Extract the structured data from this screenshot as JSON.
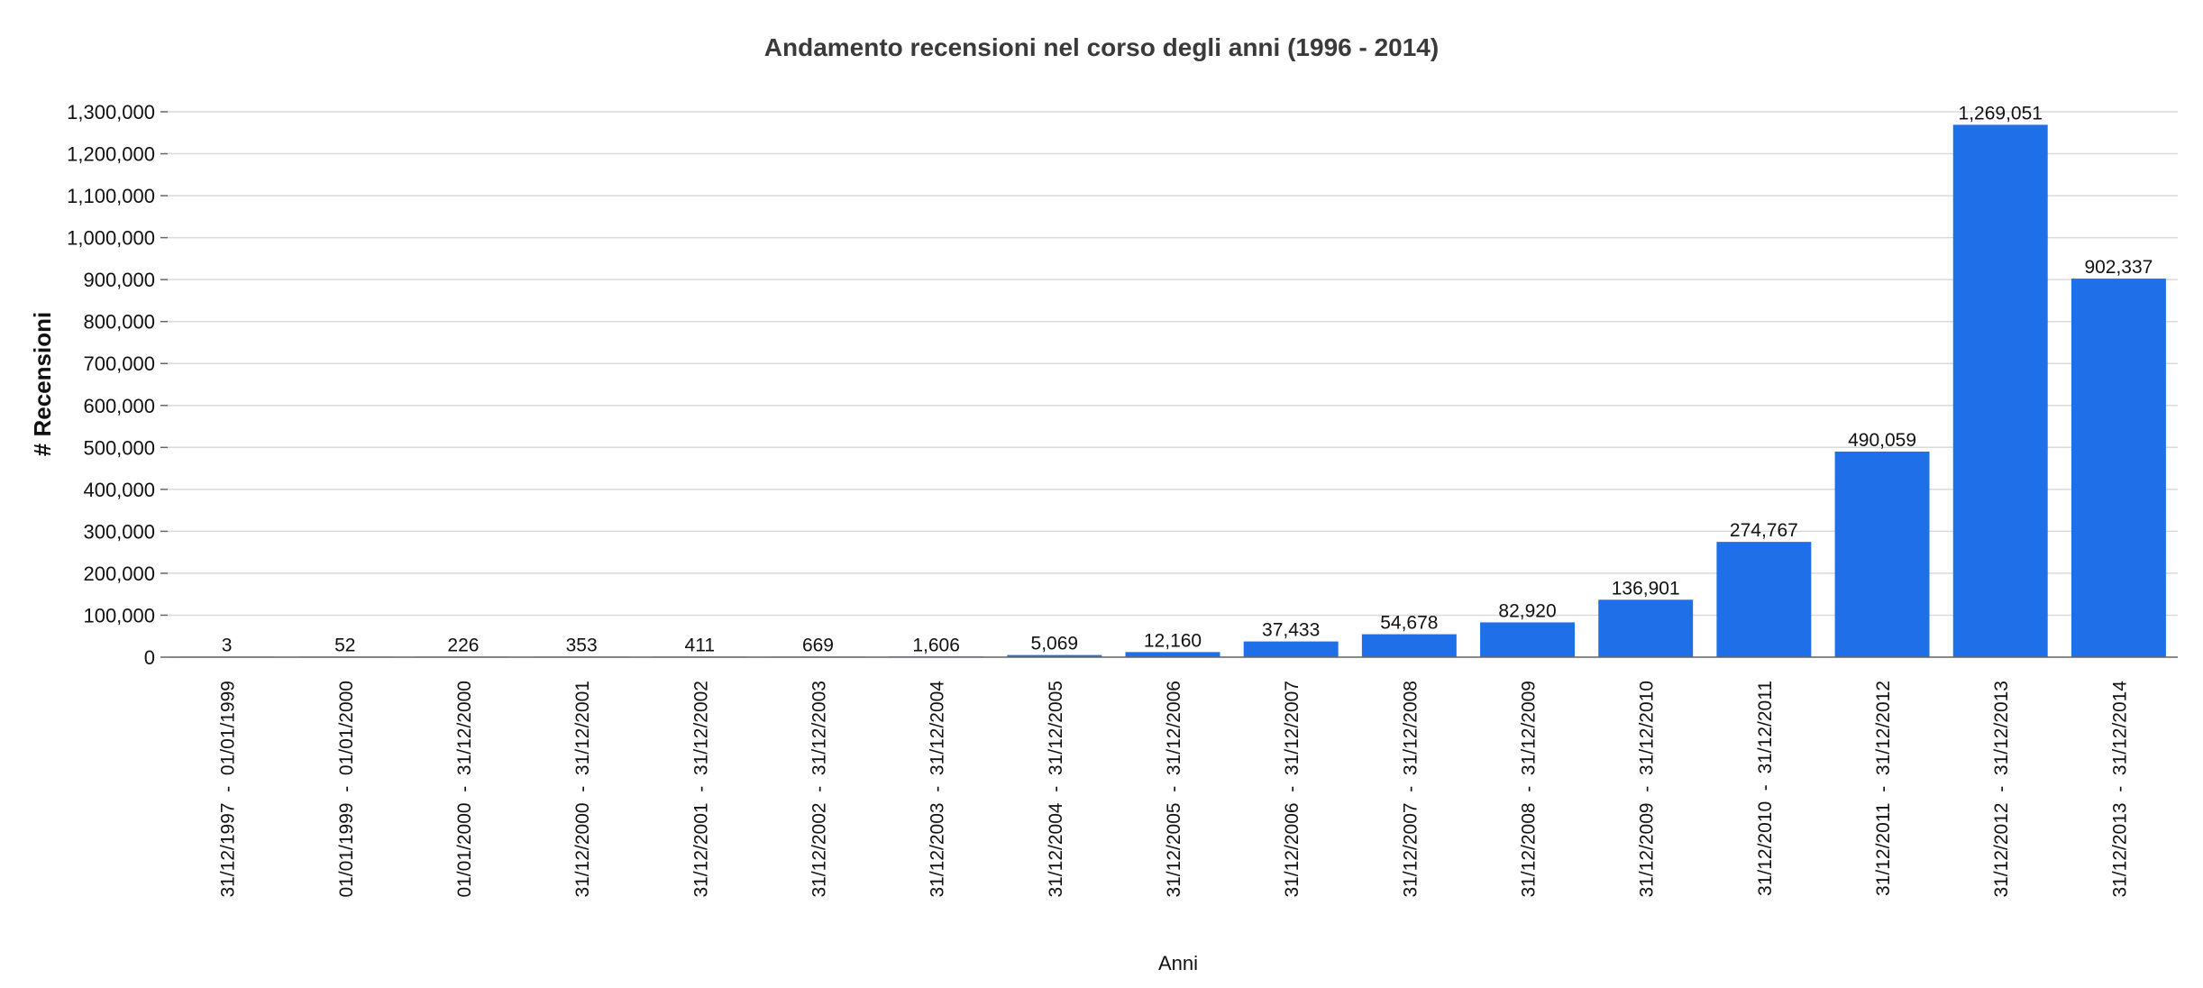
{
  "chart_data": {
    "type": "bar",
    "title": "Andamento recensioni nel corso degli anni (1996 - 2014)",
    "xlabel": "Anni",
    "ylabel": "# Recensioni",
    "ylim": [
      0,
      1300000
    ],
    "ytick_labels": [
      "0",
      "100,000",
      "200,000",
      "300,000",
      "400,000",
      "500,000",
      "600,000",
      "700,000",
      "800,000",
      "900,000",
      "1,000,000",
      "1,100,000",
      "1,200,000",
      "1,300,000"
    ],
    "grid": true,
    "bar_color": "#1f6fe8",
    "categories": [
      "31/12/1997  -  01/01/1999",
      "01/01/1999  -  01/01/2000",
      "01/01/2000  -  31/12/2000",
      "31/12/2000  -  31/12/2001",
      "31/12/2001  -  31/12/2002",
      "31/12/2002  -  31/12/2003",
      "31/12/2003  -  31/12/2004",
      "31/12/2004  -  31/12/2005",
      "31/12/2005  -  31/12/2006",
      "31/12/2006  -  31/12/2007",
      "31/12/2007  -  31/12/2008",
      "31/12/2008  -  31/12/2009",
      "31/12/2009  -  31/12/2010",
      "31/12/2010  -  31/12/2011",
      "31/12/2011  -  31/12/2012",
      "31/12/2012  -  31/12/2013",
      "31/12/2013  -  31/12/2014"
    ],
    "values": [
      3,
      52,
      226,
      353,
      411,
      669,
      1606,
      5069,
      12160,
      37433,
      54678,
      82920,
      136901,
      274767,
      490059,
      1269051,
      902337
    ],
    "value_labels": [
      "3",
      "52",
      "226",
      "353",
      "411",
      "669",
      "1,606",
      "5,069",
      "12,160",
      "37,433",
      "54,678",
      "82,920",
      "136,901",
      "274,767",
      "490,059",
      "1,269,051",
      "902,337"
    ]
  }
}
